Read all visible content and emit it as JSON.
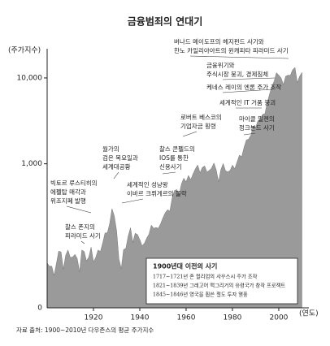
{
  "chart_data": {
    "type": "area",
    "title": "금융범죄의 연대기",
    "y_label": "(주가지수)",
    "x_label": "(연도)",
    "color": "#9a9a9a",
    "log_scale": true,
    "ylim": [
      21,
      17600
    ],
    "yticks": [
      {
        "value": 10000,
        "label": "10,000"
      },
      {
        "value": 1000,
        "label": "1,000"
      }
    ],
    "y_origin_label": "0",
    "xlim": [
      1900,
      2013
    ],
    "xticks": [
      1920,
      1940,
      1960,
      1980,
      2000
    ],
    "x": [
      1900,
      1901,
      1902,
      1903,
      1904,
      1905,
      1906,
      1907,
      1908,
      1909,
      1910,
      1911,
      1912,
      1913,
      1914,
      1915,
      1916,
      1917,
      1918,
      1919,
      1920,
      1921,
      1922,
      1923,
      1924,
      1925,
      1926,
      1927,
      1928,
      1929,
      1930,
      1931,
      1932,
      1933,
      1934,
      1935,
      1936,
      1937,
      1938,
      1939,
      1940,
      1941,
      1942,
      1943,
      1944,
      1945,
      1946,
      1947,
      1948,
      1949,
      1950,
      1951,
      1952,
      1953,
      1954,
      1955,
      1956,
      1957,
      1958,
      1959,
      1960,
      1961,
      1962,
      1963,
      1964,
      1965,
      1966,
      1967,
      1968,
      1969,
      1970,
      1971,
      1972,
      1973,
      1974,
      1975,
      1976,
      1977,
      1978,
      1979,
      1980,
      1981,
      1982,
      1983,
      1984,
      1985,
      1986,
      1987,
      1988,
      1989,
      1990,
      1991,
      1992,
      1993,
      1994,
      1995,
      1996,
      1997,
      1998,
      1999,
      2000,
      2001,
      2002,
      2003,
      2004,
      2005,
      2006,
      2007,
      2008,
      2009,
      2010
    ],
    "values": [
      70,
      64,
      64,
      50,
      69,
      96,
      94,
      59,
      86,
      99,
      81,
      82,
      88,
      79,
      55,
      99,
      95,
      74,
      82,
      107,
      72,
      81,
      99,
      95,
      120,
      156,
      157,
      200,
      300,
      248,
      165,
      78,
      60,
      100,
      104,
      144,
      180,
      121,
      155,
      150,
      131,
      111,
      119,
      136,
      152,
      193,
      177,
      181,
      177,
      200,
      235,
      269,
      292,
      281,
      404,
      488,
      500,
      436,
      584,
      679,
      616,
      731,
      652,
      763,
      874,
      969,
      786,
      905,
      944,
      800,
      839,
      890,
      1020,
      851,
      616,
      852,
      1005,
      831,
      805,
      839,
      964,
      875,
      1047,
      1259,
      1212,
      1547,
      1896,
      1939,
      2169,
      2753,
      2634,
      3169,
      3301,
      3754,
      3834,
      5117,
      6448,
      7908,
      9181,
      11497,
      10787,
      10022,
      8342,
      10454,
      10783,
      10718,
      12463,
      13265,
      8776,
      10428,
      11578
    ],
    "annotations": [
      {
        "lines": [
          "찰스 폰지의",
          "피라미드 사기"
        ]
      },
      {
        "lines": [
          "빅토르 루스티히의",
          "에펠탑 매각과",
          "위조지폐 발행"
        ]
      },
      {
        "lines": [
          "월가의",
          "검은 목요일과",
          "세계대공황"
        ]
      },
      {
        "lines": [
          "세계적인 성냥왕",
          "이바르 크뤼게르의 몰락"
        ]
      },
      {
        "lines": [
          "찰스 콘펠드의",
          "IOS를 통한",
          "신용사기"
        ]
      },
      {
        "lines": [
          "로버트 베스코의",
          "기업자금 횡령"
        ]
      },
      {
        "lines": [
          "마이클 밀켄의",
          "정크본드 사기"
        ]
      },
      {
        "lines": [
          "세계적인 IT 거품 붕괴"
        ]
      },
      {
        "lines": [
          "케네스 레이의 엔론 주가 조작"
        ]
      },
      {
        "lines": [
          "금융위기와",
          "주식시장 붕괴, 경제침체"
        ]
      },
      {
        "lines": [
          "버나드 메이도프의 헤지펀드 사기와",
          "한노 카일리아아트의 윈캐피타 피라미드 사기"
        ]
      }
    ],
    "box": {
      "title": "1900년대 이전의 사기",
      "lines": [
        "1717~1721년 존 윌리엄의 사우스시 주가 조작",
        "1821~1839년 그레고어 맥그리거의 유령국가 창작 프로젝트",
        "1845~1846년 영국을 휩쓴 철도 투자 열풍"
      ]
    },
    "source": "자료 출처: 1900~2010년 다우존스의 평균 주가지수"
  }
}
